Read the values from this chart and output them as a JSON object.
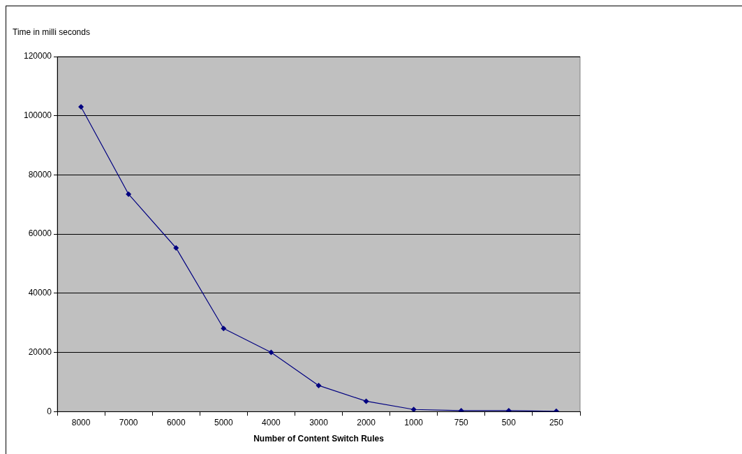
{
  "chart_data": {
    "type": "line",
    "ylabel": "Time in milli seconds",
    "xlabel": "Number of Content Switch Rules",
    "categories": [
      "8000",
      "7000",
      "6000",
      "5000",
      "4000",
      "3000",
      "2000",
      "1000",
      "750",
      "500",
      "250"
    ],
    "series": [
      {
        "color": "#000080",
        "values": [
          103000,
          73500,
          55300,
          28100,
          20000,
          8800,
          3500,
          700,
          300,
          300,
          100
        ]
      }
    ],
    "ylim": [
      0,
      120000
    ],
    "yticks": [
      0,
      20000,
      40000,
      60000,
      80000,
      100000,
      120000
    ],
    "grid": "y",
    "marker": "diamond",
    "legend": false
  }
}
